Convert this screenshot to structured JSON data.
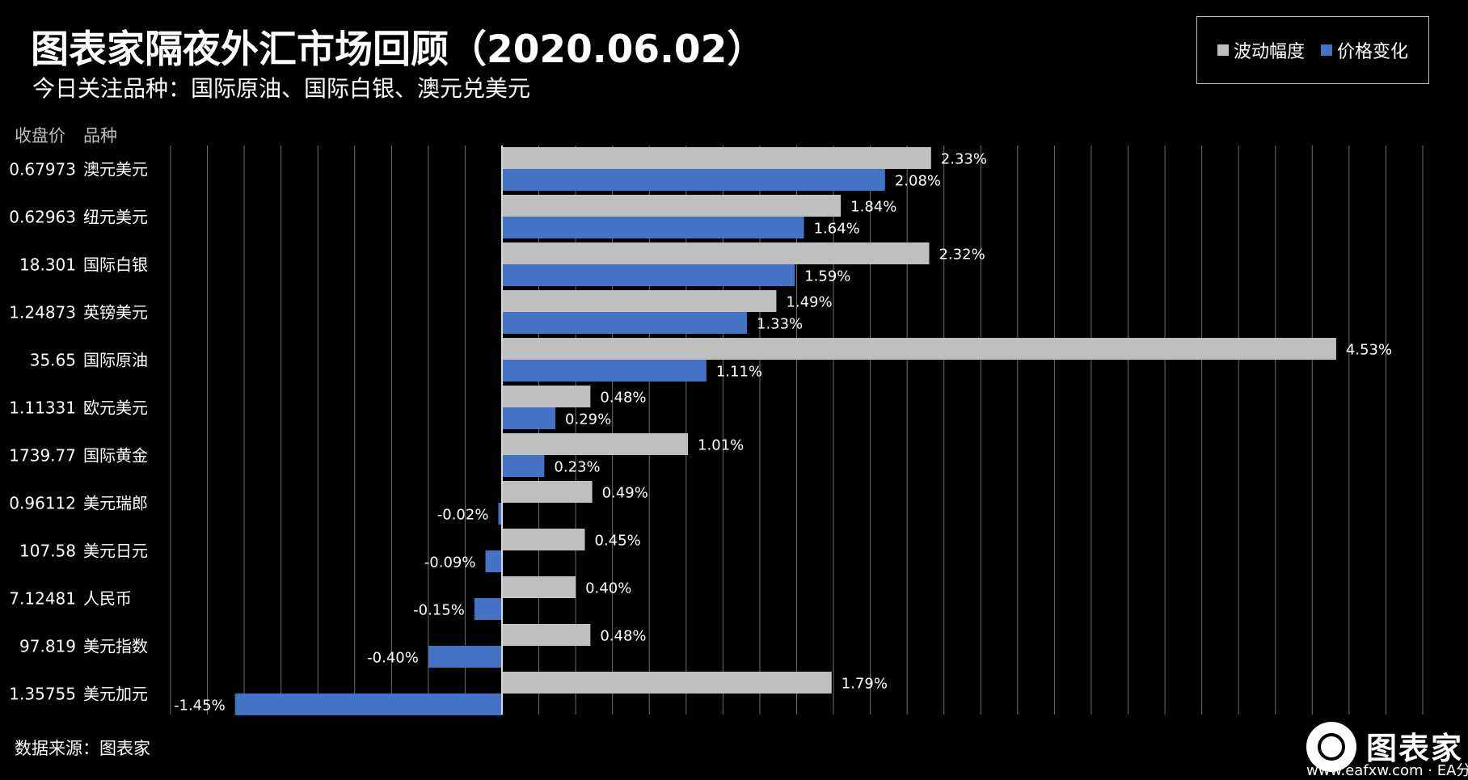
{
  "header": {
    "title": "图表家隔夜外汇市场回顾（2020.06.02）",
    "subtitle": "今日关注品种：国际原油、国际白银、澳元兑美元"
  },
  "legend": {
    "items": [
      {
        "label": "波动幅度",
        "color": "#bfbfbf"
      },
      {
        "label": "价格变化",
        "color": "#4472c4"
      }
    ]
  },
  "columns": {
    "price_header": "收盘价",
    "name_header": "品种"
  },
  "footer": {
    "source": "数据来源：图表家"
  },
  "logo": {
    "text": "图表家",
    "url": "www.eafxw.com · EA分享网"
  },
  "chart_data": {
    "type": "bar",
    "orientation": "horizontal",
    "categories": [
      "澳元美元",
      "纽元美元",
      "国际白银",
      "英镑美元",
      "国际原油",
      "欧元美元",
      "国际黄金",
      "美元瑞郎",
      "美元日元",
      "人民币",
      "美元指数",
      "美元加元"
    ],
    "closing_prices": [
      "0.67973",
      "0.62963",
      "18.301",
      "1.24873",
      "35.65",
      "1.11331",
      "1739.77",
      "0.96112",
      "107.58",
      "7.12481",
      "97.819",
      "1.35755"
    ],
    "series": [
      {
        "name": "波动幅度",
        "color": "#bfbfbf",
        "values": [
          2.33,
          1.84,
          2.32,
          1.49,
          4.53,
          0.48,
          1.01,
          0.49,
          0.45,
          0.4,
          0.48,
          1.79
        ]
      },
      {
        "name": "价格变化",
        "color": "#4472c4",
        "values": [
          2.08,
          1.64,
          1.59,
          1.33,
          1.11,
          0.29,
          0.23,
          -0.02,
          -0.09,
          -0.15,
          -0.4,
          -1.45
        ]
      }
    ],
    "value_suffix": "%",
    "xlim": [
      -1.8,
      5.0
    ],
    "grid": true,
    "legend_position": "top-right"
  }
}
